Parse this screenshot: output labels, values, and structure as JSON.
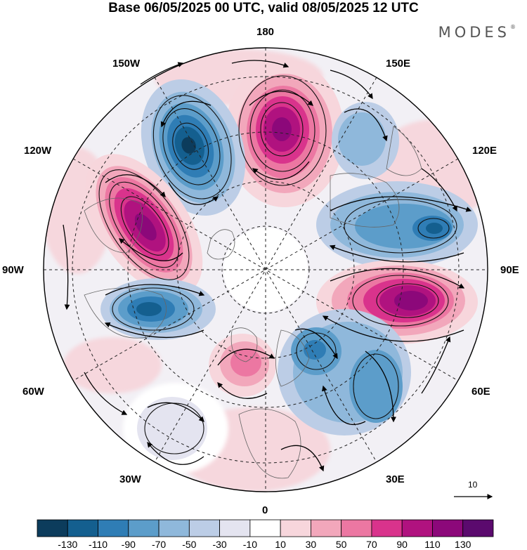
{
  "title": "Base 06/05/2025 00 UTC, valid 08/05/2025 12 UTC",
  "brand": "MODES",
  "brand_mark": "®",
  "longitude_labels": {
    "top": "180",
    "top_left": "150W",
    "top_right": "150E",
    "upper_left": "120W",
    "upper_right": "120E",
    "left": "90W",
    "right": "90E",
    "lower_left": "60W",
    "lower_right": "60E",
    "bottom_left": "30W",
    "bottom_right": "30E",
    "bottom": "0"
  },
  "reference_vector_label": "10",
  "colorbar": {
    "labels": [
      "-130",
      "-110",
      "-90",
      "-70",
      "-50",
      "-30",
      "-10",
      "10",
      "30",
      "50",
      "70",
      "90",
      "110",
      "130"
    ],
    "colors": [
      "#0c3c5c",
      "#145f8f",
      "#2f7db5",
      "#5c9dca",
      "#8fb8db",
      "#bccde6",
      "#e4e4f0",
      "#ffffff",
      "#f7d6dc",
      "#f2a7bb",
      "#ec77a2",
      "#d9338c",
      "#b0127f",
      "#8c087a",
      "#5b0a6e"
    ]
  },
  "map": {
    "projection": "north polar stereographic",
    "land_color": "#d7d7d7",
    "vector_color": "#000000"
  }
}
